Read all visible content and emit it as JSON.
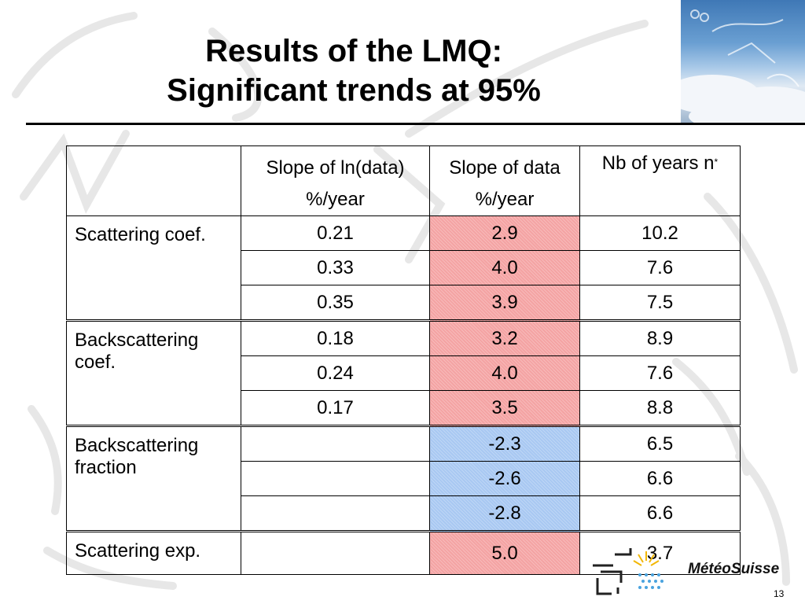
{
  "title": {
    "line1": "Results of the LMQ:",
    "line2": "Significant trends at 95%"
  },
  "table": {
    "headers": {
      "col1_line1": "Slope of ln(data)",
      "col1_line2": "%/year",
      "col2_line1": "Slope of data",
      "col2_line2": "%/year",
      "col3": "Nb of years n",
      "col3_sup": "*"
    },
    "groups": [
      {
        "label": "Scattering coef.",
        "rows": [
          {
            "ln": "0.21",
            "slope": "2.9",
            "years": "10.2",
            "color": "red"
          },
          {
            "ln": "0.33",
            "slope": "4.0",
            "years": "7.6",
            "color": "red"
          },
          {
            "ln": "0.35",
            "slope": "3.9",
            "years": "7.5",
            "color": "red"
          }
        ]
      },
      {
        "label": "Backscattering coef.",
        "rows": [
          {
            "ln": "0.18",
            "slope": "3.2",
            "years": "8.9",
            "color": "red"
          },
          {
            "ln": "0.24",
            "slope": "4.0",
            "years": "7.6",
            "color": "red"
          },
          {
            "ln": "0.17",
            "slope": "3.5",
            "years": "8.8",
            "color": "red"
          }
        ]
      },
      {
        "label": "Backscattering fraction",
        "rows": [
          {
            "ln": "",
            "slope": "-2.3",
            "years": "6.5",
            "color": "blue"
          },
          {
            "ln": "",
            "slope": "-2.6",
            "years": "6.6",
            "color": "blue"
          },
          {
            "ln": "",
            "slope": "-2.8",
            "years": "6.6",
            "color": "blue"
          }
        ]
      },
      {
        "label": "Scattering exp.",
        "rows": [
          {
            "ln": "",
            "slope": "5.0",
            "years": "3.7",
            "color": "red"
          }
        ]
      }
    ]
  },
  "colors": {
    "positive_trend": "#f4a3a3",
    "negative_trend": "#a8c8f2"
  },
  "logo": {
    "text": "MétéoSuisse"
  },
  "page_number": "13"
}
